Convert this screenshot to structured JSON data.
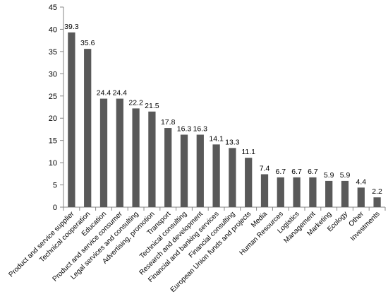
{
  "chart_data": {
    "type": "bar",
    "categories": [
      "Product and service supplier",
      "Technical cooperation",
      "Education",
      "Product and service consumer",
      "Legal services and consulting",
      "Advertising, promotion",
      "Transport",
      "Technical consulting",
      "Research and development",
      "Financial and banking services",
      "Financial consulting",
      "European Union funds and projects",
      "Media",
      "Human Resources",
      "Logistics",
      "Management",
      "Marketing",
      "Ecology",
      "Other",
      "Investments"
    ],
    "values": [
      39.3,
      35.6,
      24.4,
      24.4,
      22.2,
      21.5,
      17.8,
      16.3,
      16.3,
      14.1,
      13.3,
      11.1,
      7.4,
      6.7,
      6.7,
      6.7,
      5.9,
      5.9,
      4.4,
      2.2
    ],
    "data_labels": [
      "39.3",
      "35.6",
      "24.4",
      "24.4",
      "22.2",
      "21.5",
      "17.8",
      "16.3",
      "16.3",
      "14.1",
      "13.3",
      "11.1",
      "7.4",
      "6.7",
      "6.7",
      "6.7",
      "5.9",
      "5.9",
      "4.4",
      "2.2"
    ],
    "title": "",
    "xlabel": "",
    "ylabel": "",
    "ylim": [
      0,
      45
    ],
    "yticks": [
      0,
      5,
      10,
      15,
      20,
      25,
      30,
      35,
      40,
      45
    ],
    "grid": false,
    "legend": "none",
    "bar_color": "#595959",
    "axis_color": "#868686"
  }
}
